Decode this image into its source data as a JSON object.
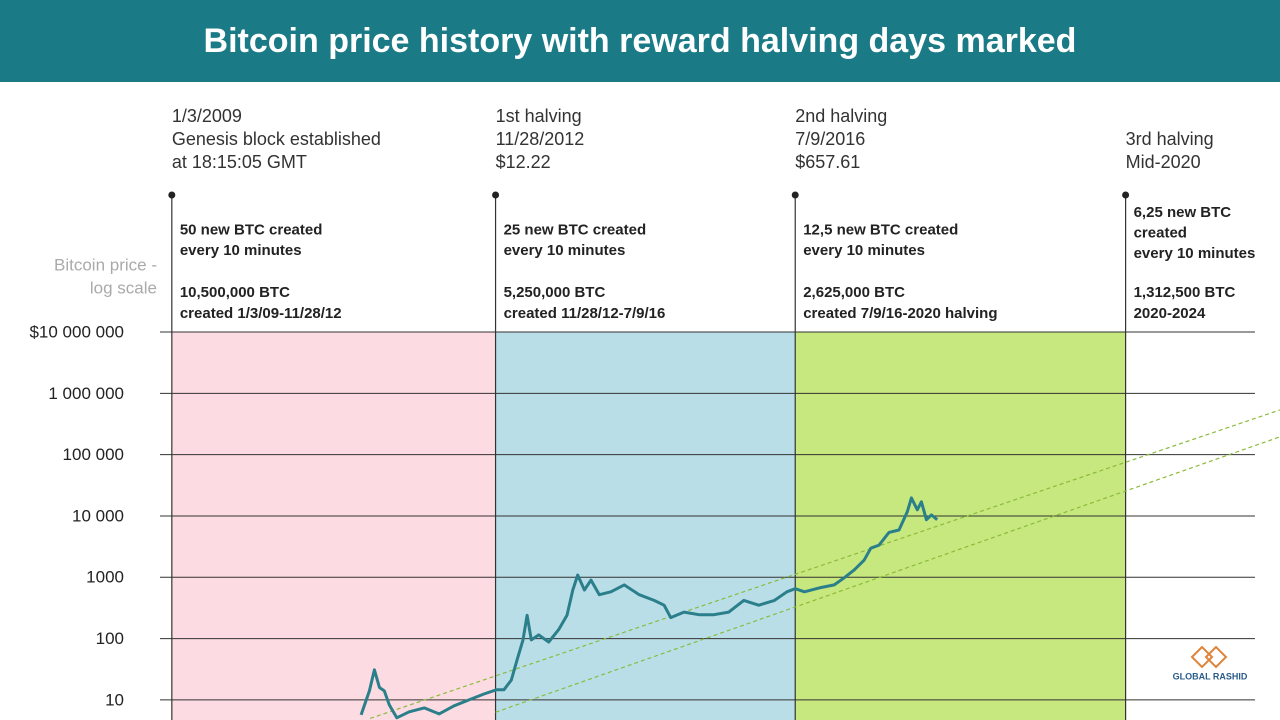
{
  "chart_data": {
    "type": "line",
    "title": "Bitcoin price history with reward halving days marked",
    "y_label": [
      "Bitcoin price -",
      "log scale"
    ],
    "log_scale": true,
    "grid": true,
    "xlim": [
      2006.94,
      2022.36
    ],
    "ylim": [
      4.7,
      10000000
    ],
    "yticks": [
      {
        "value": 10000000,
        "label": "$10 000 000"
      },
      {
        "value": 1000000,
        "label": "1 000 000"
      },
      {
        "value": 100000,
        "label": "100 000"
      },
      {
        "value": 10000,
        "label": "10 000"
      },
      1000,
      100,
      10
    ],
    "halvings": [
      {
        "x": 2009.01,
        "color": "#fcdce2",
        "lines": [
          "1/3/2009",
          "Genesis block established",
          "at 18:15:05 GMT"
        ],
        "rate": [
          "50 new BTC created",
          "every 10 minutes"
        ],
        "supply": [
          "10,500,000 BTC",
          "created 1/3/09-11/28/12"
        ]
      },
      {
        "x": 2012.91,
        "color": "#badee8",
        "lines": [
          "1st halving",
          "11/28/2012",
          "$12.22"
        ],
        "rate": [
          "25 new BTC created",
          "every 10 minutes"
        ],
        "supply": [
          "5,250,000 BTC",
          "created 11/28/12-7/9/16"
        ]
      },
      {
        "x": 2016.52,
        "color": "#c6e87e",
        "lines": [
          "2nd halving",
          "7/9/2016",
          "$657.61"
        ],
        "rate": [
          "12,5 new BTC created",
          "every 10 minutes"
        ],
        "supply": [
          "2,625,000 BTC",
          "created 7/9/16-2020 halving"
        ]
      },
      {
        "x": 2020.5,
        "lines": [
          "3rd halving",
          "Mid-2020"
        ],
        "rate": [
          "6,25 new BTC",
          "created",
          "every 10 minutes"
        ],
        "supply": [
          "1,312,500 BTC",
          "2020-2024"
        ]
      }
    ],
    "series": [
      {
        "color": "#2a7f8b",
        "x": [
          2011.29,
          2011.39,
          2011.45,
          2011.51,
          2011.57,
          2011.63,
          2011.72,
          2011.87,
          2012.05,
          2012.23,
          2012.41,
          2012.59,
          2012.77,
          2012.92,
          2013.01,
          2013.1,
          2013.17,
          2013.24,
          2013.29,
          2013.34,
          2013.43,
          2013.55,
          2013.67,
          2013.77,
          2013.84,
          2013.9,
          2013.98,
          2014.06,
          2014.16,
          2014.3,
          2014.46,
          2014.64,
          2014.82,
          2014.94,
          2015.02,
          2015.18,
          2015.36,
          2015.54,
          2015.72,
          2015.9,
          2016.08,
          2016.27,
          2016.42,
          2016.52,
          2016.63,
          2016.81,
          2016.99,
          2017.11,
          2017.23,
          2017.35,
          2017.43,
          2017.53,
          2017.65,
          2017.77,
          2017.87,
          2017.92,
          2017.99,
          2018.04,
          2018.1,
          2018.16,
          2018.23
        ],
        "values": [
          5.7,
          14,
          31,
          16,
          14,
          8.3,
          5.1,
          6.4,
          7.4,
          5.9,
          8,
          10,
          12.5,
          14.6,
          14.6,
          21,
          45,
          95,
          240,
          95,
          115,
          88,
          140,
          240,
          620,
          1090,
          620,
          900,
          520,
          580,
          750,
          520,
          420,
          350,
          220,
          270,
          245,
          245,
          270,
          420,
          350,
          420,
          580,
          650,
          580,
          670,
          750,
          980,
          1320,
          1900,
          2980,
          3350,
          5400,
          5900,
          11700,
          19700,
          12600,
          17000,
          8700,
          10400,
          8700
        ]
      }
    ],
    "trends": [
      {
        "color": "#8bbb3c",
        "dashed": true,
        "x": [
          2011.4,
          2022.36
        ],
        "values": [
          5,
          537000
        ]
      },
      {
        "color": "#8bbb3c",
        "dashed": true,
        "x": [
          2012.91,
          2022.36
        ],
        "values": [
          6.3,
          195000
        ]
      }
    ],
    "watermark": "GLOBAL RASHID"
  }
}
